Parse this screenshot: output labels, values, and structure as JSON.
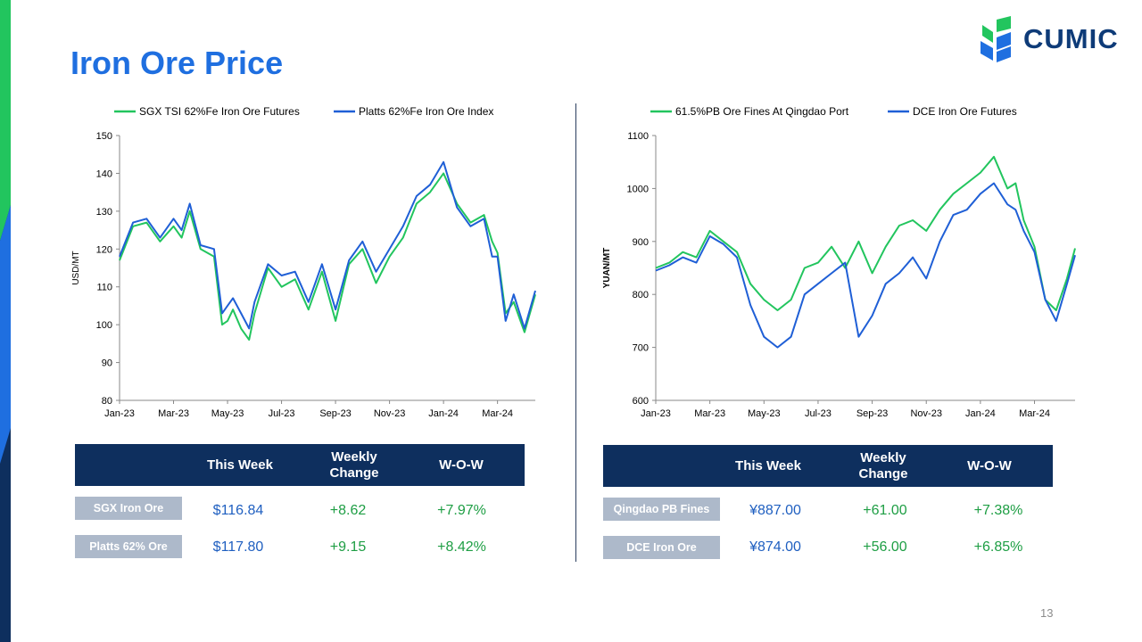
{
  "title": "Iron Ore Price",
  "logo": {
    "text": "CUMIC",
    "icon": "cumic-logo-icon"
  },
  "page_number": "13",
  "colors": {
    "green": "#22C55E",
    "blue": "#1F5FD6",
    "title": "#1F6FE0",
    "header_bg": "#0E2F5E",
    "label_bg": "#ADB9CA"
  },
  "chart_data": [
    {
      "type": "line",
      "xlabel": "",
      "ylabel": "USD/MT",
      "ylim": [
        80,
        150
      ],
      "yticks": [
        "80",
        "90",
        "100",
        "110",
        "120",
        "130",
        "140",
        "150"
      ],
      "xticks": [
        "Jan-23",
        "Mar-23",
        "May-23",
        "Jul-23",
        "Sep-23",
        "Nov-23",
        "Jan-24",
        "Mar-24"
      ],
      "xrange": [
        0,
        15.4
      ],
      "legend_position": "top",
      "grid": false,
      "series": [
        {
          "name": "SGX TSI 62%Fe Iron Ore Futures",
          "color": "#22C55E",
          "x": [
            0,
            0.5,
            1,
            1.5,
            2,
            2.3,
            2.6,
            3,
            3.5,
            3.8,
            4,
            4.2,
            4.5,
            4.8,
            5,
            5.5,
            6,
            6.5,
            7,
            7.5,
            8,
            8.5,
            9,
            9.5,
            10,
            10.5,
            11,
            11.5,
            12,
            12.5,
            13,
            13.5,
            13.8,
            14,
            14.3,
            14.6,
            15,
            15.4
          ],
          "values": [
            117,
            126,
            127,
            122,
            126,
            123,
            130,
            120,
            118,
            100,
            101,
            104,
            99,
            96,
            103,
            115,
            110,
            112,
            104,
            114,
            101,
            116,
            120,
            111,
            118,
            123,
            132,
            135,
            140,
            132,
            127,
            129,
            122,
            119,
            103,
            106,
            98,
            108
          ]
        },
        {
          "name": "Platts 62%Fe Iron Ore Index",
          "color": "#1F5FD6",
          "x": [
            0,
            0.5,
            1,
            1.5,
            2,
            2.3,
            2.6,
            3,
            3.5,
            3.8,
            4,
            4.2,
            4.5,
            4.8,
            5,
            5.5,
            6,
            6.5,
            7,
            7.5,
            8,
            8.5,
            9,
            9.5,
            10,
            10.5,
            11,
            11.5,
            12,
            12.5,
            13,
            13.5,
            13.8,
            14,
            14.3,
            14.6,
            15,
            15.4
          ],
          "values": [
            118,
            127,
            128,
            123,
            128,
            125,
            132,
            121,
            120,
            103,
            105,
            107,
            103,
            99,
            106,
            116,
            113,
            114,
            106,
            116,
            104,
            117,
            122,
            114,
            120,
            126,
            134,
            137,
            143,
            131,
            126,
            128,
            118,
            118,
            101,
            108,
            99,
            109
          ]
        }
      ]
    },
    {
      "type": "line",
      "xlabel": "",
      "ylabel": "YUAN/MT",
      "ylim": [
        600,
        1100
      ],
      "yticks": [
        "600",
        "700",
        "800",
        "900",
        "1000",
        "1100"
      ],
      "xticks": [
        "Jan-23",
        "Mar-23",
        "May-23",
        "Jul-23",
        "Sep-23",
        "Nov-23",
        "Jan-24",
        "Mar-24"
      ],
      "xrange": [
        0,
        15.5
      ],
      "legend_position": "top",
      "grid": false,
      "series": [
        {
          "name": "61.5%PB Ore Fines At Qingdao Port",
          "color": "#22C55E",
          "x": [
            0,
            0.5,
            1,
            1.5,
            2,
            2.5,
            3,
            3.5,
            4,
            4.5,
            5,
            5.5,
            6,
            6.5,
            7,
            7.5,
            8,
            8.5,
            9,
            9.5,
            10,
            10.5,
            11,
            11.5,
            12,
            12.5,
            13,
            13.3,
            13.6,
            14,
            14.4,
            14.8,
            15.2,
            15.5
          ],
          "values": [
            850,
            860,
            880,
            870,
            920,
            900,
            880,
            820,
            790,
            770,
            790,
            850,
            860,
            890,
            850,
            900,
            840,
            890,
            930,
            940,
            920,
            960,
            990,
            1010,
            1030,
            1060,
            1000,
            1010,
            940,
            890,
            790,
            770,
            830,
            887
          ]
        },
        {
          "name": "DCE Iron Ore Futures",
          "color": "#1F5FD6",
          "x": [
            0,
            0.5,
            1,
            1.5,
            2,
            2.5,
            3,
            3.5,
            4,
            4.5,
            5,
            5.5,
            6,
            6.5,
            7,
            7.5,
            8,
            8.5,
            9,
            9.5,
            10,
            10.5,
            11,
            11.5,
            12,
            12.5,
            13,
            13.3,
            13.6,
            14,
            14.4,
            14.8,
            15.2,
            15.5
          ],
          "values": [
            845,
            855,
            870,
            860,
            910,
            895,
            870,
            780,
            720,
            700,
            720,
            800,
            820,
            840,
            860,
            720,
            760,
            820,
            840,
            870,
            830,
            900,
            950,
            960,
            990,
            1010,
            970,
            960,
            920,
            880,
            790,
            750,
            820,
            874
          ]
        }
      ]
    }
  ],
  "tables": [
    {
      "headers": [
        "This Week",
        "Weekly Change",
        "W-O-W"
      ],
      "rows": [
        {
          "label": "SGX Iron Ore",
          "price": "$116.84",
          "change": "+8.62",
          "wow": "+7.97%"
        },
        {
          "label": "Platts 62% Ore",
          "price": "$117.80",
          "change": "+9.15",
          "wow": "+8.42%"
        }
      ]
    },
    {
      "headers": [
        "This Week",
        "Weekly Change",
        "W-O-W"
      ],
      "rows": [
        {
          "label": "Qingdao PB Fines",
          "price": "¥887.00",
          "change": "+61.00",
          "wow": "+7.38%"
        },
        {
          "label": "DCE Iron Ore",
          "price": "¥874.00",
          "change": "+56.00",
          "wow": "+6.85%"
        }
      ]
    }
  ]
}
